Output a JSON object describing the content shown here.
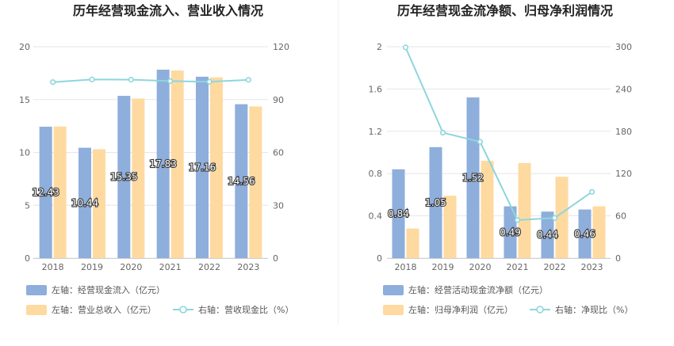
{
  "colors": {
    "blue": "#8eaedc",
    "orange": "#fedaa1",
    "teal": "#8dd6dd",
    "grid": "#e6e6e6"
  },
  "chart_data": [
    {
      "type": "bar",
      "title": "历年经营现金流入、营业收入情况",
      "categories": [
        "2018",
        "2019",
        "2020",
        "2021",
        "2022",
        "2023"
      ],
      "y_left": {
        "min": 0,
        "max": 20,
        "ticks": [
          "0",
          "5",
          "10",
          "15",
          "20"
        ]
      },
      "y_right": {
        "min": 0,
        "max": 120,
        "ticks": [
          "0",
          "30",
          "60",
          "90",
          "120"
        ]
      },
      "series": [
        {
          "name": "左轴：经营现金流入（亿元）",
          "type": "bar",
          "axis": "left",
          "color": "#8eaedc",
          "values": [
            12.43,
            10.44,
            15.35,
            17.83,
            17.16,
            14.56
          ],
          "labels": [
            "12.43",
            "10.44",
            "15.35",
            "17.83",
            "17.16",
            "14.56"
          ]
        },
        {
          "name": "左轴：营业总收入（亿元）",
          "type": "bar",
          "axis": "left",
          "color": "#fedaa1",
          "values": [
            12.45,
            10.3,
            15.1,
            17.75,
            17.1,
            14.35
          ]
        },
        {
          "name": "右轴：营收现金比（%）",
          "type": "line",
          "axis": "right",
          "color": "#8dd6dd",
          "values": [
            99.9,
            101.4,
            101.3,
            100.5,
            100.1,
            101.2
          ]
        }
      ]
    },
    {
      "type": "bar",
      "title": "历年经营现金流净额、归母净利润情况",
      "categories": [
        "2018",
        "2019",
        "2020",
        "2021",
        "2022",
        "2023"
      ],
      "y_left": {
        "min": 0,
        "max": 2,
        "ticks": [
          "0",
          "0.4",
          "0.8",
          "1.2",
          "1.6",
          "2"
        ]
      },
      "y_right": {
        "min": 0,
        "max": 300,
        "ticks": [
          "0",
          "60",
          "120",
          "180",
          "240",
          "300"
        ]
      },
      "series": [
        {
          "name": "左轴：经营活动现金流净额（亿元）",
          "type": "bar",
          "axis": "left",
          "color": "#8eaedc",
          "values": [
            0.84,
            1.05,
            1.52,
            0.49,
            0.44,
            0.46
          ],
          "labels": [
            "0.84",
            "1.05",
            "1.52",
            "0.49",
            "0.44",
            "0.46"
          ]
        },
        {
          "name": "左轴：归母净利润（亿元）",
          "type": "bar",
          "axis": "left",
          "color": "#fedaa1",
          "values": [
            0.28,
            0.59,
            0.92,
            0.9,
            0.77,
            0.49
          ]
        },
        {
          "name": "右轴：净现比（%）",
          "type": "line",
          "axis": "right",
          "color": "#8dd6dd",
          "values": [
            299,
            178,
            165,
            54,
            57,
            94
          ]
        }
      ]
    }
  ]
}
